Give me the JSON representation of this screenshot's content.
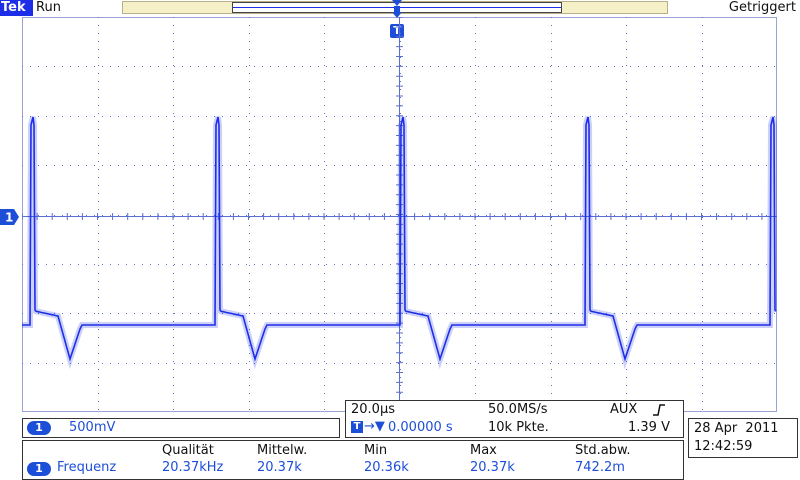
{
  "header": {
    "brand": "Tek",
    "run_state": "Run",
    "trigger_state": "Getriggert"
  },
  "trigger_marker": {
    "label": "T"
  },
  "channel_marker": {
    "label": "1"
  },
  "scale_panel": {
    "channel_badge": "1",
    "volts_per_div": "500mV"
  },
  "time_panel": {
    "time_per_div": "20.0µs",
    "sample_rate": "50.0MS/s",
    "trigger_source": "AUX",
    "trigger_slope_icon": "rising-edge-icon",
    "trigger_position_badge": "T",
    "trigger_position_arrow": "→▼",
    "trigger_position_value": "0.00000 s",
    "record_length": "10k Pkte.",
    "trigger_level": "1.39 V"
  },
  "measurement_panel": {
    "channel_badge": "1",
    "measurement_name": "Frequenz",
    "headers": [
      "Qualität",
      "Mittelw.",
      "Min",
      "Max",
      "Std.abw."
    ],
    "values": [
      "20.37kHz",
      "20.37k",
      "20.36k",
      "20.37k",
      "742.2m"
    ]
  },
  "datetime_panel": {
    "date": "28 Apr  2011",
    "time": "12:42:59"
  },
  "colors": {
    "trace": "#1d2ee8",
    "graticule": "#5b6fd0",
    "brand_bg": "#1d2ee8",
    "record_bar": "#f6f0c8"
  }
}
